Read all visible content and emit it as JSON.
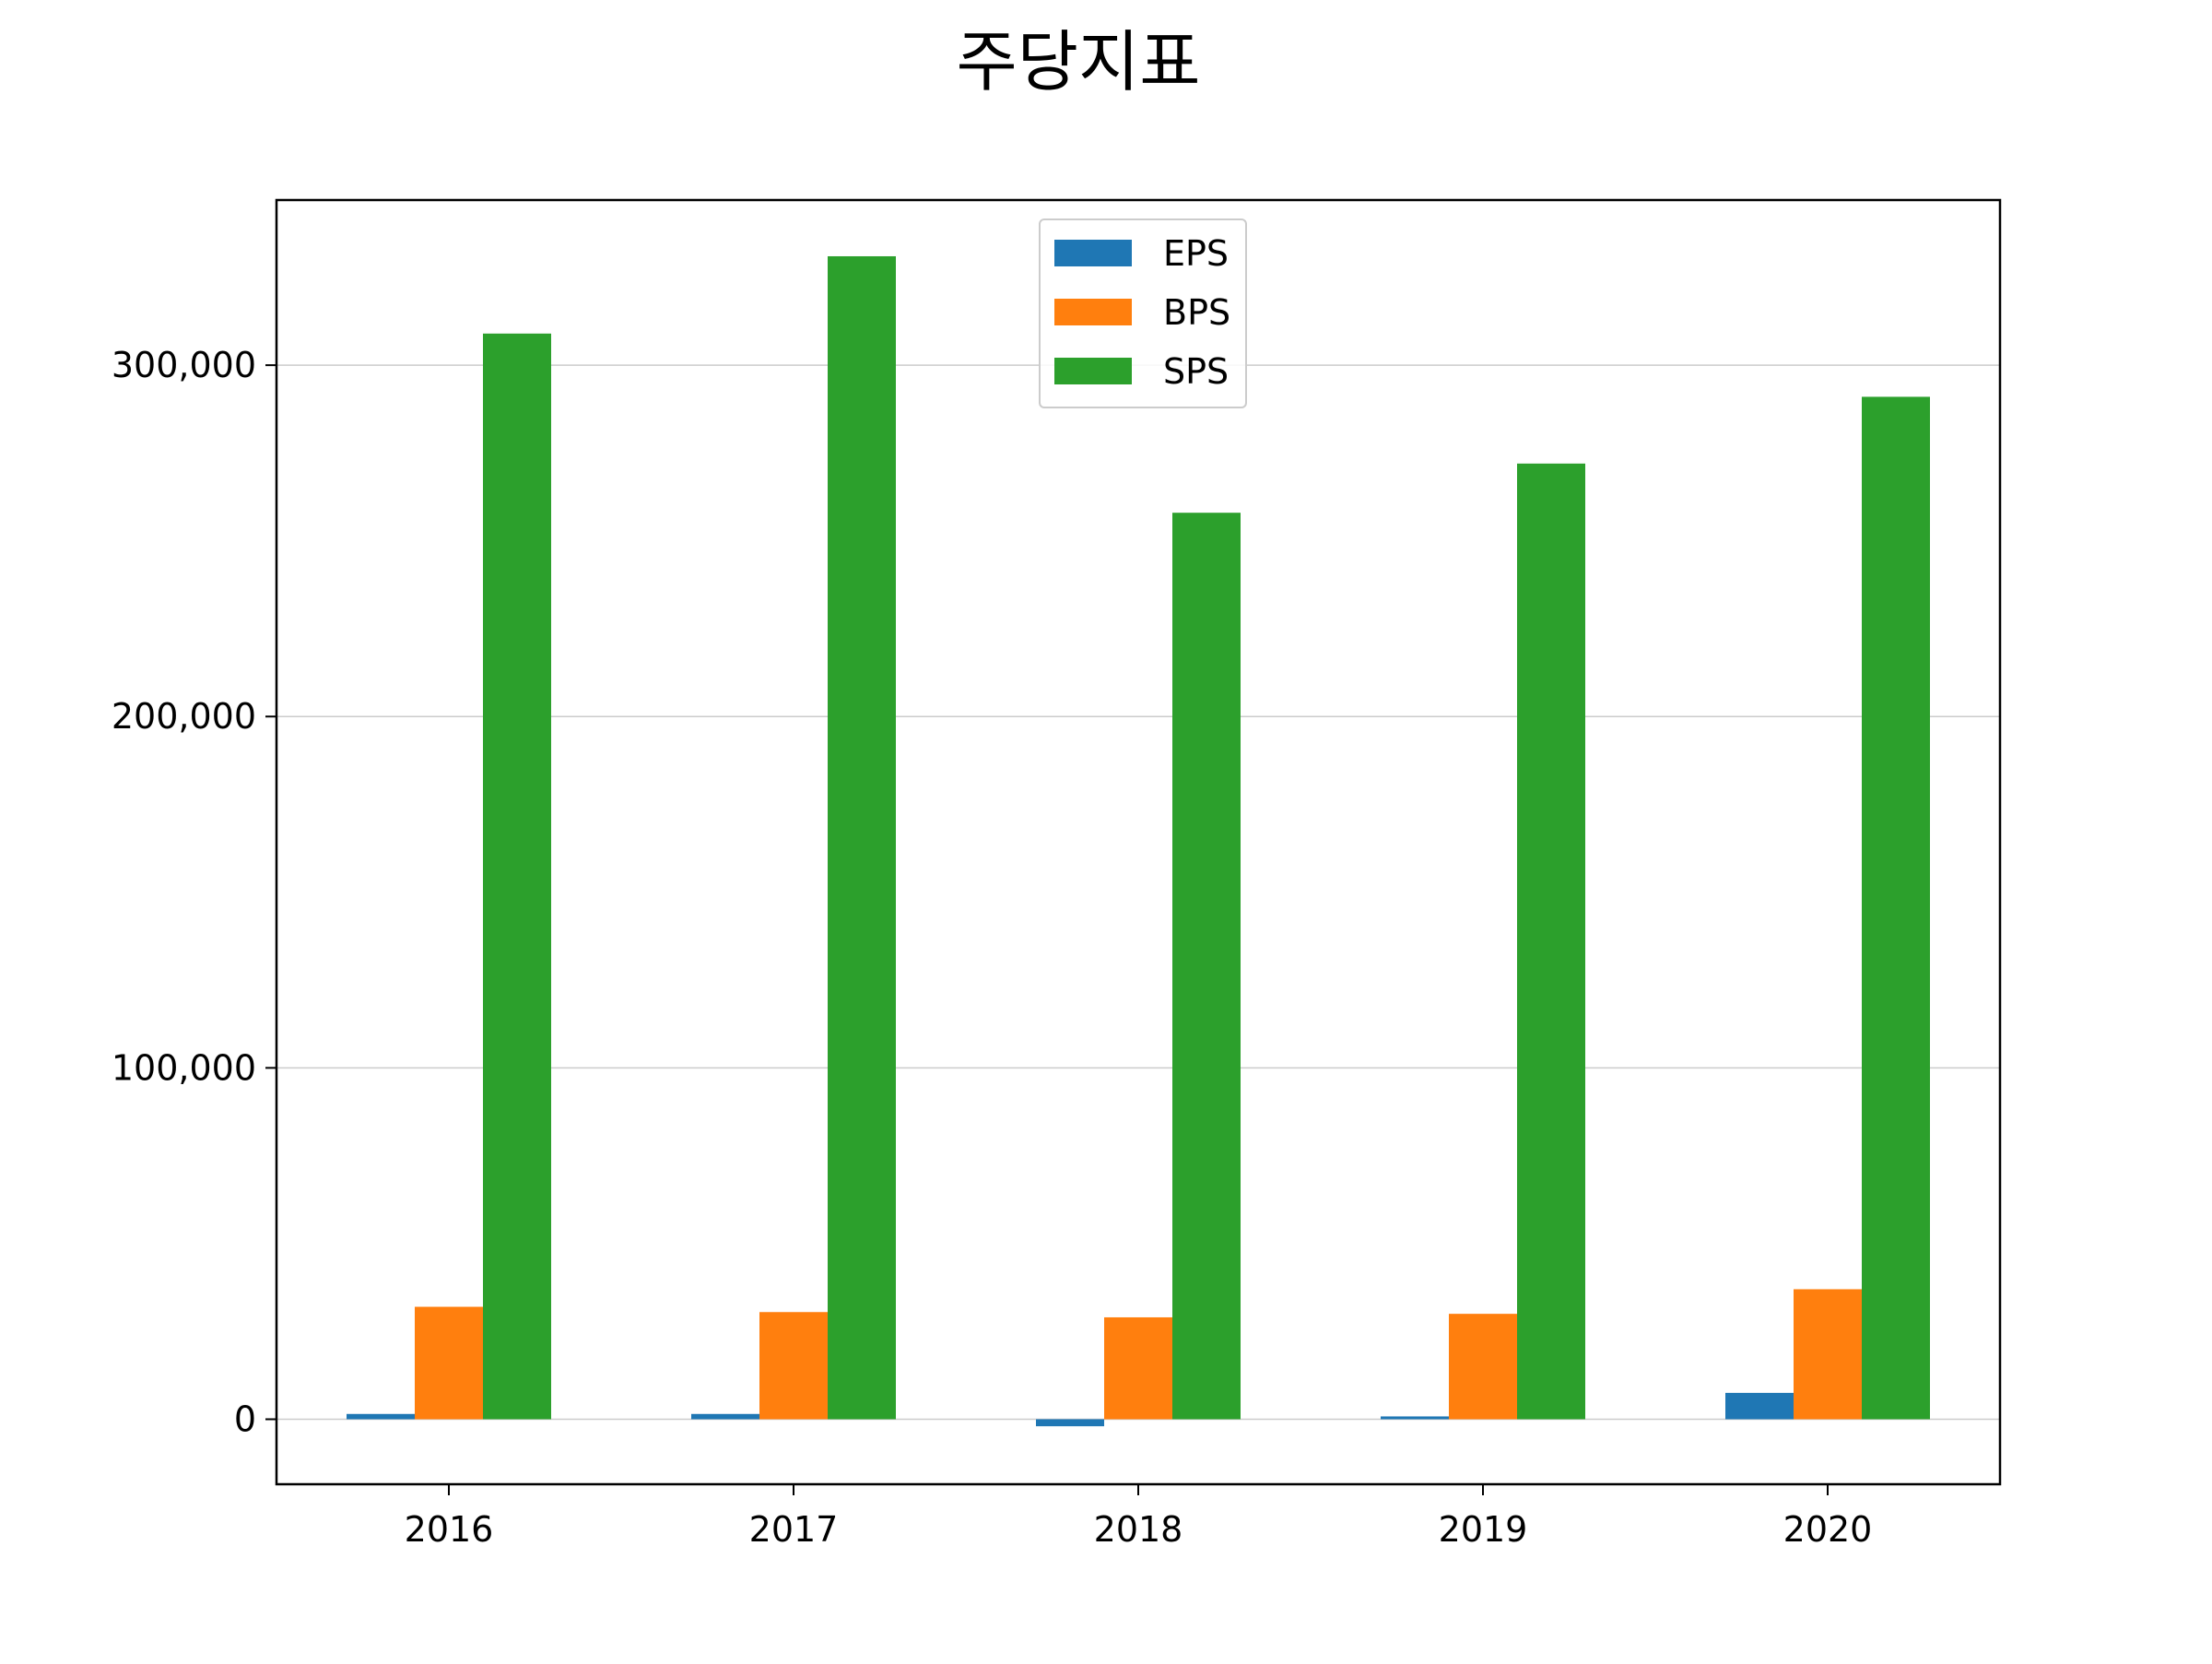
{
  "chart_data": {
    "type": "bar",
    "title": "주당지표",
    "xlabel": "",
    "ylabel": "",
    "categories": [
      "2016",
      "2017",
      "2018",
      "2019",
      "2020"
    ],
    "series": [
      {
        "name": "EPS",
        "color": "#1f77b4",
        "values": [
          1500,
          1500,
          -2000,
          800,
          7500
        ]
      },
      {
        "name": "BPS",
        "color": "#ff7f0e",
        "values": [
          32000,
          30500,
          29000,
          30000,
          37000
        ]
      },
      {
        "name": "SPS",
        "color": "#2ca02c",
        "values": [
          309000,
          331000,
          258000,
          272000,
          291000
        ]
      }
    ],
    "ylim": [
      -18500,
      347000
    ],
    "yticks": [
      0,
      100000,
      200000,
      300000
    ],
    "ytick_labels": [
      "0",
      "100,000",
      "200,000",
      "300,000"
    ],
    "grid": "y",
    "legend_position": "top-center"
  }
}
